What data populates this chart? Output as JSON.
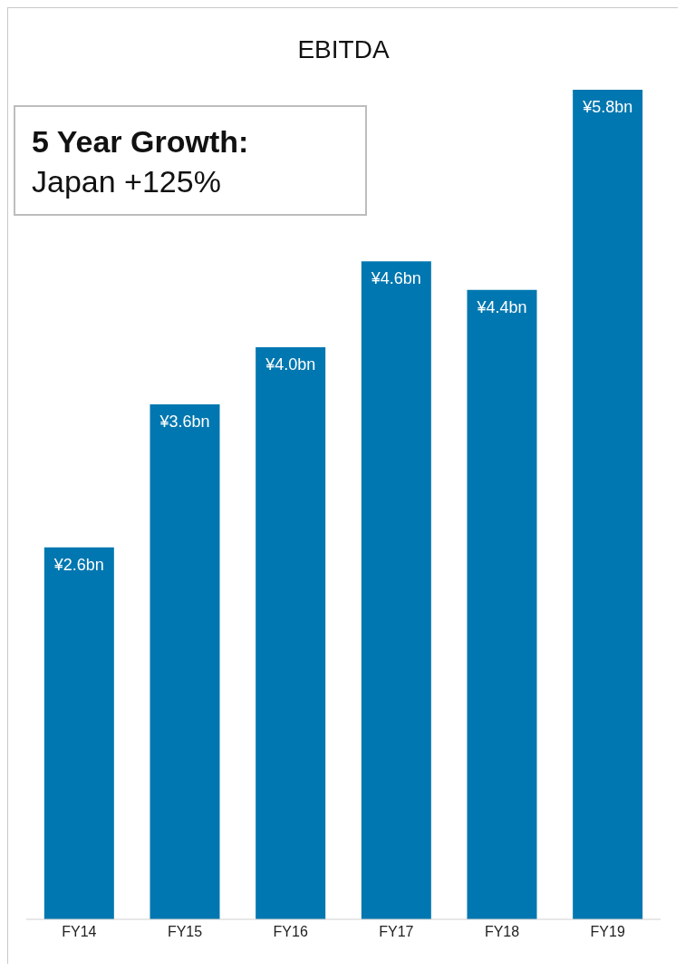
{
  "chart_data": {
    "type": "bar",
    "title": "EBITDA",
    "categories": [
      "FY14",
      "FY15",
      "FY16",
      "FY17",
      "FY18",
      "FY19"
    ],
    "values": [
      2.6,
      3.6,
      4.0,
      4.6,
      4.4,
      5.8
    ],
    "value_labels": [
      "¥2.6bn",
      "¥3.6bn",
      "¥4.0bn",
      "¥4.6bn",
      "¥4.4bn",
      "¥5.8bn"
    ],
    "color": "#0077b0",
    "grid": false,
    "annotations": [
      "5 Year Growth:",
      "Japan +125%"
    ]
  }
}
